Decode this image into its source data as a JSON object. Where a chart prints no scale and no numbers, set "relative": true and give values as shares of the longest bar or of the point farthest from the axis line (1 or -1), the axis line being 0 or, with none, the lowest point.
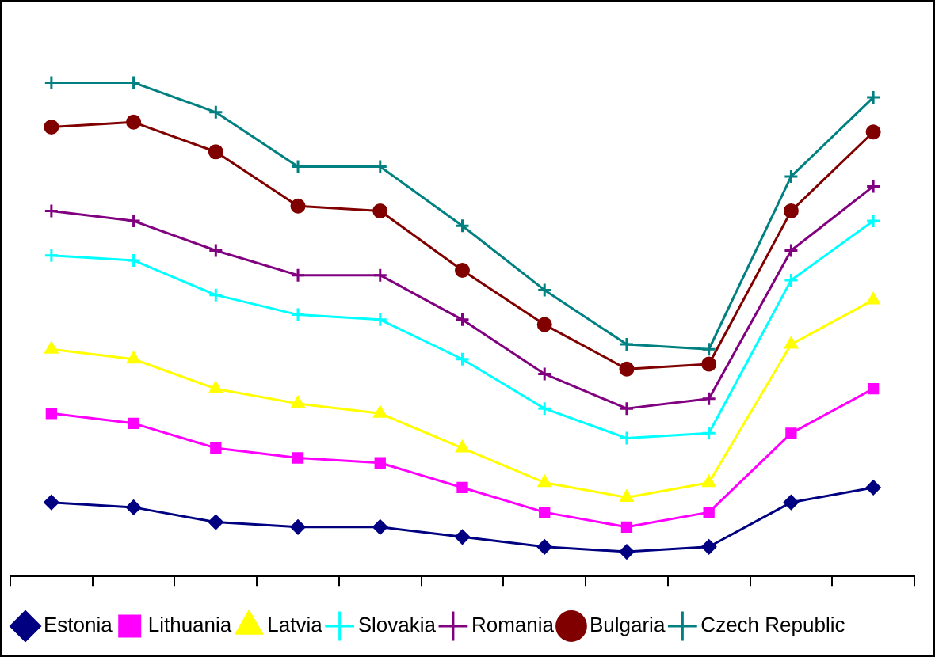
{
  "chart_data": {
    "type": "line",
    "relative": true,
    "categories": [
      null,
      null,
      null,
      null,
      null,
      null,
      null,
      null,
      null,
      null,
      null
    ],
    "legend": "bottom",
    "grid": false,
    "series": [
      {
        "name": "Estonia",
        "color": "#000080",
        "marker": "diamond",
        "values": [
          0.15,
          0.14,
          0.11,
          0.1,
          0.1,
          0.08,
          0.06,
          0.05,
          0.06,
          0.15,
          0.18
        ]
      },
      {
        "name": "Lithuania",
        "color": "#ff00ff",
        "marker": "square",
        "values": [
          0.33,
          0.31,
          0.26,
          0.24,
          0.23,
          0.18,
          0.13,
          0.1,
          0.13,
          0.29,
          0.38
        ]
      },
      {
        "name": "Latvia",
        "color": "#ffff00",
        "marker": "triangle",
        "values": [
          0.46,
          0.44,
          0.38,
          0.35,
          0.33,
          0.26,
          0.19,
          0.16,
          0.19,
          0.47,
          0.56
        ]
      },
      {
        "name": "Slovakia",
        "color": "#00ffff",
        "marker": "cross",
        "values": [
          0.65,
          0.64,
          0.57,
          0.53,
          0.52,
          0.44,
          0.34,
          0.28,
          0.29,
          0.6,
          0.72
        ]
      },
      {
        "name": "Romania",
        "color": "#800080",
        "marker": "cross",
        "values": [
          0.74,
          0.72,
          0.66,
          0.61,
          0.61,
          0.52,
          0.41,
          0.34,
          0.36,
          0.66,
          0.79
        ]
      },
      {
        "name": "Bulgaria",
        "color": "#800000",
        "marker": "circle",
        "values": [
          0.91,
          0.92,
          0.86,
          0.75,
          0.74,
          0.62,
          0.51,
          0.42,
          0.43,
          0.74,
          0.9
        ]
      },
      {
        "name": "Czech Republic",
        "color": "#008080",
        "marker": "cross",
        "values": [
          1,
          1,
          0.94,
          0.83,
          0.83,
          0.71,
          0.58,
          0.47,
          0.46,
          0.81,
          0.97
        ]
      }
    ]
  }
}
